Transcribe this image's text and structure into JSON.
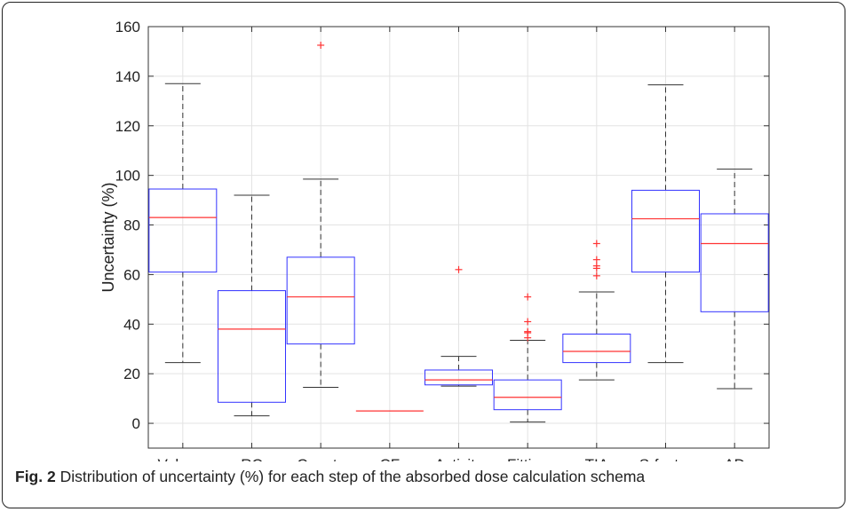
{
  "chart_data": {
    "type": "box",
    "categories": [
      "Volume",
      "RC",
      "Counts",
      "CF",
      "Activity",
      "Fitting",
      "TIA",
      "S-factor",
      "AD"
    ],
    "ylabel": "Uncertainty (%)",
    "ylim": [
      -10,
      160
    ],
    "yticks": [
      0,
      20,
      40,
      60,
      80,
      100,
      120,
      140,
      160
    ],
    "grid": true,
    "box_color": "#3333ff",
    "median_color": "#ff3333",
    "whisker_color": "#333333",
    "outlier_color": "#ff3333",
    "boxes": [
      {
        "category": "Volume",
        "whislo": 24.5,
        "q1": 61,
        "median": 83,
        "q3": 94.5,
        "whishi": 137,
        "fliers": []
      },
      {
        "category": "RC",
        "whislo": 3,
        "q1": 8.5,
        "median": 38,
        "q3": 53.5,
        "whishi": 92,
        "fliers": []
      },
      {
        "category": "Counts",
        "whislo": 14.5,
        "q1": 32,
        "median": 51,
        "q3": 67,
        "whishi": 98.5,
        "fliers": [
          152.5
        ]
      },
      {
        "category": "CF",
        "whislo": 5,
        "q1": 5,
        "median": 5,
        "q3": 5,
        "whishi": 5,
        "fliers": []
      },
      {
        "category": "Activity",
        "whislo": 15,
        "q1": 15.5,
        "median": 17.5,
        "q3": 21.5,
        "whishi": 27,
        "fliers": [
          62
        ]
      },
      {
        "category": "Fitting",
        "whislo": 0.5,
        "q1": 5.5,
        "median": 10.5,
        "q3": 17.5,
        "whishi": 33.5,
        "fliers": [
          34.5,
          36.5,
          37,
          41,
          51
        ]
      },
      {
        "category": "TIA",
        "whislo": 17.5,
        "q1": 24.5,
        "median": 29,
        "q3": 36,
        "whishi": 53,
        "fliers": [
          59.5,
          62.5,
          63.5,
          66,
          72.5
        ]
      },
      {
        "category": "S-factor",
        "whislo": 24.5,
        "q1": 61,
        "median": 82.5,
        "q3": 94,
        "whishi": 136.5,
        "fliers": []
      },
      {
        "category": "AD",
        "whislo": 14,
        "q1": 45,
        "median": 72.5,
        "q3": 84.5,
        "whishi": 102.5,
        "fliers": []
      }
    ]
  },
  "caption": {
    "label": "Fig. 2",
    "text": "Distribution of uncertainty (%) for each step of the absorbed dose calculation schema"
  }
}
